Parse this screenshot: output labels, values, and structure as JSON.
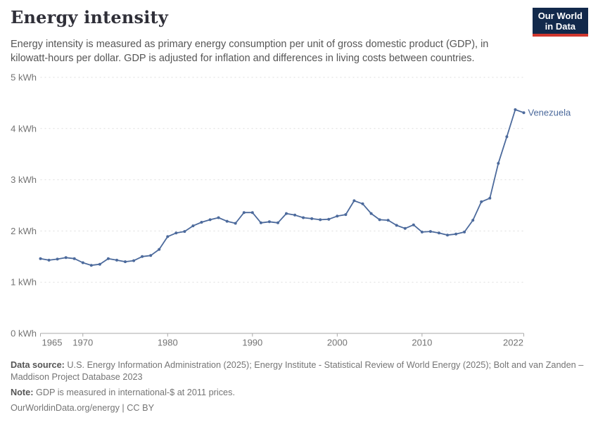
{
  "header": {
    "title": "Energy intensity",
    "subtitle": "Energy intensity is measured as primary energy consumption per unit of gross domestic product (GDP), in kilowatt-hours per dollar. GDP is adjusted for inflation and differences in living costs between countries.",
    "logo": {
      "line1": "Our World",
      "line2": "in Data",
      "bg_color": "#12294b",
      "accent_color": "#d0372e"
    }
  },
  "chart_data": {
    "type": "line",
    "title": "Energy intensity",
    "unit": "kWh",
    "xlabel": "",
    "ylabel": "",
    "xlim": [
      1965,
      2022
    ],
    "ylim": [
      0,
      5
    ],
    "grid": "horizontal-dashed",
    "legend_position": "end-of-line-label",
    "x_ticks": [
      1965,
      1970,
      1980,
      1990,
      2000,
      2010,
      2022
    ],
    "y_ticks": [
      {
        "value": 0,
        "label": "0 kWh"
      },
      {
        "value": 1,
        "label": "1 kWh"
      },
      {
        "value": 2,
        "label": "2 kWh"
      },
      {
        "value": 3,
        "label": "3 kWh"
      },
      {
        "value": 4,
        "label": "4 kWh"
      },
      {
        "value": 5,
        "label": "5 kWh"
      }
    ],
    "series": [
      {
        "name": "Venezuela",
        "color": "#4c6a9c",
        "x": [
          1965,
          1966,
          1967,
          1968,
          1969,
          1970,
          1971,
          1972,
          1973,
          1974,
          1975,
          1976,
          1977,
          1978,
          1979,
          1980,
          1981,
          1982,
          1983,
          1984,
          1985,
          1986,
          1987,
          1988,
          1989,
          1990,
          1991,
          1992,
          1993,
          1994,
          1995,
          1996,
          1997,
          1998,
          1999,
          2000,
          2001,
          2002,
          2003,
          2004,
          2005,
          2006,
          2007,
          2008,
          2009,
          2010,
          2011,
          2012,
          2013,
          2014,
          2015,
          2016,
          2017,
          2018,
          2019,
          2020,
          2021,
          2022
        ],
        "values": [
          1.46,
          1.43,
          1.45,
          1.48,
          1.46,
          1.38,
          1.33,
          1.35,
          1.46,
          1.43,
          1.4,
          1.42,
          1.5,
          1.52,
          1.64,
          1.89,
          1.96,
          1.99,
          2.1,
          2.17,
          2.22,
          2.26,
          2.19,
          2.15,
          2.36,
          2.36,
          2.16,
          2.18,
          2.16,
          2.34,
          2.31,
          2.26,
          2.24,
          2.22,
          2.23,
          2.29,
          2.32,
          2.59,
          2.53,
          2.34,
          2.22,
          2.21,
          2.11,
          2.05,
          2.12,
          1.98,
          1.99,
          1.96,
          1.92,
          1.94,
          1.98,
          2.21,
          2.57,
          2.64,
          3.32,
          3.84,
          4.37,
          4.31
        ]
      }
    ]
  },
  "footer": {
    "source_label": "Data source:",
    "source_text": "U.S. Energy Information Administration (2025); Energy Institute - Statistical Review of World Energy (2025); Bolt and van Zanden – Maddison Project Database 2023",
    "note_label": "Note:",
    "note_text": "GDP is measured in international-$ at 2011 prices.",
    "license": "OurWorldinData.org/energy | CC BY"
  }
}
